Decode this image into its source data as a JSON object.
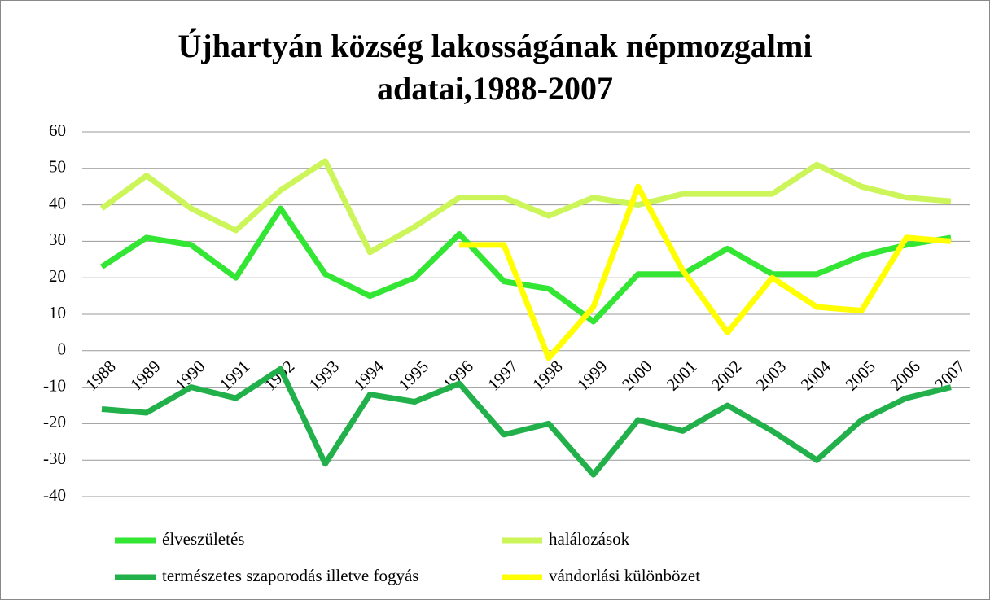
{
  "chart_data": {
    "type": "line",
    "title": "Újhartyán község lakosságának népmozgalmi adatai,1988-2007",
    "categories": [
      "1988",
      "1989",
      "1990",
      "1991",
      "1992",
      "1993",
      "1994",
      "1995",
      "1996",
      "1997",
      "1998",
      "1999",
      "2000",
      "2001",
      "2002",
      "2003",
      "2004",
      "2005",
      "2006",
      "2007"
    ],
    "series": [
      {
        "name": "élveszületés",
        "color": "#33e633",
        "values": [
          23,
          31,
          29,
          20,
          39,
          21,
          15,
          20,
          32,
          19,
          17,
          8,
          21,
          21,
          28,
          21,
          21,
          26,
          29,
          31
        ]
      },
      {
        "name": "halálozások",
        "color": "#ccf55a",
        "values": [
          39,
          48,
          39,
          33,
          44,
          52,
          27,
          34,
          42,
          42,
          37,
          42,
          40,
          43,
          43,
          43,
          51,
          45,
          42,
          41
        ]
      },
      {
        "name": "természetes szaporodás illetve fogyás",
        "color": "#22b04a",
        "values": [
          -16,
          -17,
          -10,
          -13,
          -5,
          -31,
          -12,
          -14,
          -9,
          -23,
          -20,
          -34,
          -19,
          -22,
          -15,
          -22,
          -30,
          -19,
          -13,
          -10
        ]
      },
      {
        "name": "vándorlási különbözet",
        "color": "#ffff00",
        "values": [
          null,
          null,
          null,
          null,
          null,
          null,
          null,
          null,
          29,
          29,
          -2,
          12,
          45,
          22,
          5,
          20,
          12,
          11,
          31,
          30
        ]
      }
    ],
    "ylim": [
      -40,
      60
    ],
    "yticks": [
      -40,
      -30,
      -20,
      -10,
      0,
      10,
      20,
      30,
      40,
      50,
      60
    ],
    "grid": true
  }
}
